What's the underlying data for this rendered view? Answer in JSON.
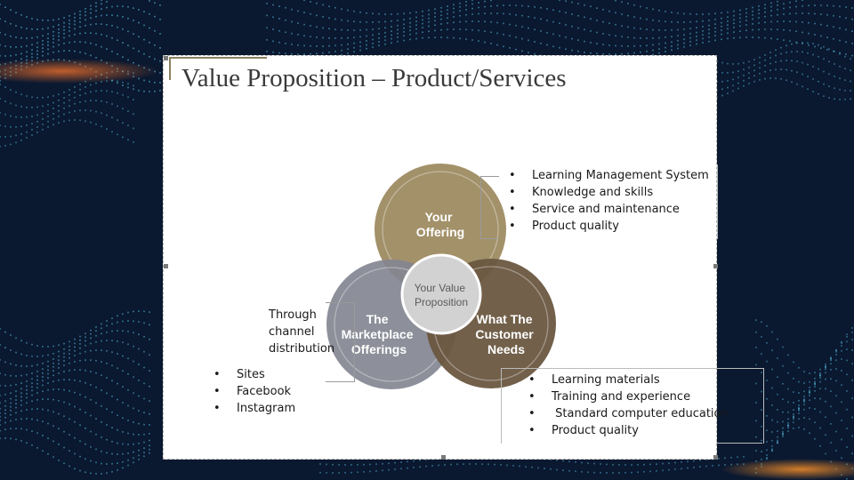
{
  "slide": {
    "title": "Value Proposition – Product/Services",
    "venn": {
      "offering": {
        "line1": "Your",
        "line2": "Offering",
        "color": "#a3916a"
      },
      "marketplace": {
        "line1": "The",
        "line2": "Marketplace",
        "line3": "Offerings",
        "color": "#838591"
      },
      "customer": {
        "line1": "What The",
        "line2": "Customer",
        "line3": "Needs",
        "color": "#6a5740"
      },
      "center": {
        "line1": "Your Value",
        "line2": "Proposition",
        "color": "#d2d2d2"
      }
    },
    "offering_list": [
      "Learning Management System",
      "Knowledge and skills",
      "Service and maintenance",
      "Product quality"
    ],
    "channel_text": "Through channel distribution",
    "channel_list": [
      "Sites",
      "Facebook",
      "Instagram"
    ],
    "needs_list": [
      "Learning materials",
      "Training and experience",
      " Standard computer education",
      "Product quality"
    ]
  },
  "colors": {
    "background": "#0a1830",
    "accent_dots": "#5bc8e8",
    "glow": "#e06a2a"
  }
}
